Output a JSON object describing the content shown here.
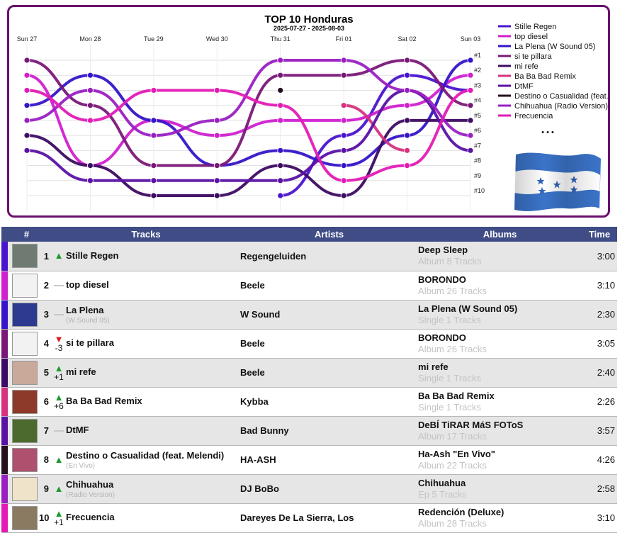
{
  "chart_data": {
    "type": "line",
    "title": "TOP 10 Honduras",
    "subtitle": "2025-07-27 - 2025-08-03",
    "x": [
      "Sun 27",
      "Mon 28",
      "Tue 29",
      "Wed 30",
      "Thu 31",
      "Fri 01",
      "Sat 02",
      "Sun 03"
    ],
    "rank_labels": [
      "#1",
      "#2",
      "#3",
      "#4",
      "#5",
      "#6",
      "#7",
      "#8",
      "#9",
      "#10"
    ],
    "ylim": [
      1,
      10
    ],
    "y_reversed": true,
    "legend_position": "right",
    "series": [
      {
        "name": "Stille Regen",
        "color": "#4a14cf",
        "values": [
          null,
          null,
          null,
          null,
          10,
          6,
          2,
          3
        ]
      },
      {
        "name": "top diesel",
        "color": "#d11fd0",
        "values": [
          2,
          8,
          5,
          6,
          5,
          5,
          4,
          2
        ]
      },
      {
        "name": "La Plena (W Sound 05)",
        "color": "#3614c9",
        "values": [
          4,
          2,
          5,
          8,
          7,
          8,
          6,
          1
        ]
      },
      {
        "name": "si te pillara",
        "color": "#7a1878",
        "values": [
          1,
          4,
          8,
          8,
          2,
          2,
          1,
          4
        ]
      },
      {
        "name": "mi refe",
        "color": "#3d0b63",
        "values": [
          6,
          8,
          10,
          10,
          8,
          10,
          5,
          5
        ]
      },
      {
        "name": "Ba Ba Bad Remix",
        "color": "#d6327f",
        "values": [
          null,
          null,
          null,
          null,
          null,
          4,
          7,
          null
        ]
      },
      {
        "name": "DtMF",
        "color": "#5a12a6",
        "values": [
          7,
          9,
          9,
          9,
          9,
          7,
          3,
          7
        ]
      },
      {
        "name": "Destino o Casualidad (feat. Melendi)",
        "color": "#24101f",
        "values": [
          null,
          null,
          null,
          null,
          3,
          null,
          null,
          null
        ]
      },
      {
        "name": "Chihuahua (Radio Version)",
        "color": "#9a1fc3",
        "values": [
          5,
          3,
          6,
          5,
          1,
          1,
          3,
          6
        ]
      },
      {
        "name": "Frecuencia",
        "color": "#e31bb6",
        "values": [
          3,
          5,
          3,
          3,
          4,
          9,
          8,
          3
        ]
      }
    ]
  },
  "legend": {
    "items": [
      {
        "label": "Stille Regen",
        "color": "#4a14cf"
      },
      {
        "label": "top diesel",
        "color": "#d11fd0"
      },
      {
        "label": "La Plena (W Sound 05)",
        "color": "#3614c9"
      },
      {
        "label": "si te pillara",
        "color": "#7a1878"
      },
      {
        "label": "mi refe",
        "color": "#3d0b63"
      },
      {
        "label": "Ba Ba Bad Remix",
        "color": "#d6327f"
      },
      {
        "label": "DtMF",
        "color": "#5a12a6"
      },
      {
        "label": "Destino o Casualidad (feat...",
        "color": "#24101f"
      },
      {
        "label": "Chihuahua (Radio Version)",
        "color": "#9a1fc3"
      },
      {
        "label": "Frecuencia",
        "color": "#e31bb6"
      }
    ],
    "more": "• • •"
  },
  "table": {
    "headers": {
      "rank": "#",
      "tracks": "Tracks",
      "artists": "Artists",
      "albums": "Albums",
      "time": "Time"
    },
    "rows": [
      {
        "rank": "1",
        "move": "up",
        "delta": "",
        "stripe": "#4a14cf",
        "cover": "#6f7a72",
        "title": "Stille Regen",
        "title_sub": "",
        "artist": "Regengeluiden",
        "album": "Deep Sleep",
        "album_sub": "Album 8 Tracks",
        "time": "3:00"
      },
      {
        "rank": "2",
        "move": "same",
        "delta": "",
        "stripe": "#d11fd0",
        "cover": "#f2f2f2",
        "title": "top diesel",
        "title_sub": "",
        "artist": "Beele",
        "album": "BORONDO",
        "album_sub": "Album 26 Tracks",
        "time": "3:10"
      },
      {
        "rank": "3",
        "move": "same",
        "delta": "",
        "stripe": "#3614c9",
        "cover": "#2c3a8f",
        "title": "La Plena",
        "title_sub": "(W Sound 05)",
        "artist": "W Sound",
        "album": "La Plena (W Sound 05)",
        "album_sub": "Single 1 Tracks",
        "time": "2:30"
      },
      {
        "rank": "4",
        "move": "down",
        "delta": "-3",
        "stripe": "#7a1878",
        "cover": "#f2f2f2",
        "title": "si te pillara",
        "title_sub": "",
        "artist": "Beele",
        "album": "BORONDO",
        "album_sub": "Album 26 Tracks",
        "time": "3:05"
      },
      {
        "rank": "5",
        "move": "up",
        "delta": "+1",
        "stripe": "#3d0b63",
        "cover": "#c9a99a",
        "title": "mi refe",
        "title_sub": "",
        "artist": "Beele",
        "album": "mi refe",
        "album_sub": "Single 1 Tracks",
        "time": "2:40"
      },
      {
        "rank": "6",
        "move": "up",
        "delta": "+6",
        "stripe": "#d6327f",
        "cover": "#8e3a2a",
        "title": "Ba Ba Bad Remix",
        "title_sub": "",
        "artist": "Kybba",
        "album": "Ba Ba Bad Remix",
        "album_sub": "Single 1 Tracks",
        "time": "2:26"
      },
      {
        "rank": "7",
        "move": "same",
        "delta": "",
        "stripe": "#5a12a6",
        "cover": "#4c6a2e",
        "title": "DtMF",
        "title_sub": "",
        "artist": "Bad Bunny",
        "album": "DeBÍ TiRAR MáS FOToS",
        "album_sub": "Album 17 Tracks",
        "time": "3:57"
      },
      {
        "rank": "8",
        "move": "up",
        "delta": "",
        "stripe": "#24101f",
        "cover": "#b0506f",
        "title": "Destino o Casualidad (feat. Melendi)",
        "title_sub": "(En Vivo)",
        "artist": "HA-ASH",
        "album": "Ha-Ash \"En Vivo\"",
        "album_sub": "Album 22 Tracks",
        "time": "4:26"
      },
      {
        "rank": "9",
        "move": "up",
        "delta": "",
        "stripe": "#9a1fc3",
        "cover": "#efe3c9",
        "title": "Chihuahua",
        "title_sub": "(Radio Version)",
        "artist": "DJ BoBo",
        "album": "Chihuahua",
        "album_sub": "Ep 5 Tracks",
        "time": "2:58"
      },
      {
        "rank": "10",
        "move": "up",
        "delta": "+1",
        "stripe": "#e31bb6",
        "cover": "#8a7a62",
        "title": "Frecuencia",
        "title_sub": "",
        "artist": "Dareyes De La Sierra, Los",
        "album": "Redención (Deluxe)",
        "album_sub": "Album 28 Tracks",
        "time": "3:10"
      }
    ]
  }
}
